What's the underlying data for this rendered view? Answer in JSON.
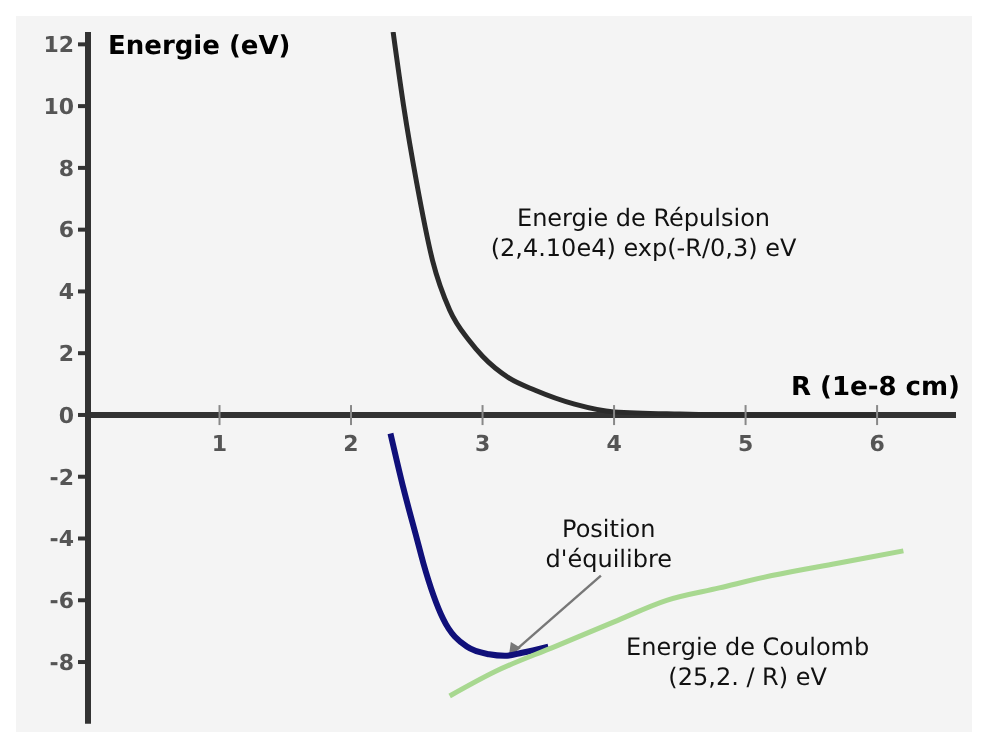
{
  "chart_data": {
    "type": "line",
    "ylabel": "Energie (eV)",
    "xlabel": "R (1e-8 cm)",
    "xlim": [
      0,
      6.6
    ],
    "xticks": [
      1,
      2,
      3,
      4,
      5,
      6
    ],
    "ylim": [
      -10,
      12.4
    ],
    "yticks": [
      -8,
      -6,
      -4,
      -2,
      0,
      2,
      4,
      6,
      8,
      10,
      12
    ],
    "marker": "none",
    "line_style": "solid",
    "series": [
      {
        "color": "#2b2b2b",
        "x": [
          2.32,
          2.4,
          2.5,
          2.62,
          2.75,
          2.9,
          3.0,
          3.2,
          3.4,
          3.7,
          4.0,
          4.5,
          5.0,
          5.5,
          6.0
        ],
        "values": [
          12.4,
          10,
          7.5,
          5,
          3.4,
          2.4,
          1.9,
          1.2,
          0.8,
          0.35,
          0.1,
          0.03,
          0,
          0,
          0
        ]
      },
      {
        "color": "#10107a",
        "x": [
          2.3,
          2.4,
          2.5,
          2.55,
          2.7,
          2.88,
          3.05,
          3.17,
          3.3,
          3.5
        ],
        "values": [
          -0.6,
          -2.4,
          -4.0,
          -4.8,
          -6.6,
          -7.5,
          -7.75,
          -7.8,
          -7.7,
          -7.5
        ]
      },
      {
        "color": "#a8d890",
        "x": [
          2.75,
          3.1,
          3.55,
          4.0,
          4.4,
          4.8,
          5.2,
          5.7,
          6.2
        ],
        "values": [
          -9.1,
          -8.3,
          -7.5,
          -6.7,
          -6.0,
          -5.6,
          -5.2,
          -4.8,
          -4.4
        ]
      }
    ],
    "annotations": [
      "Energie de Répulsion\n(2,4.10e4) exp(-R/0,3)   eV",
      {
        "text": "Position\nd'équilibre",
        "x": 3.2,
        "y": -7.8
      },
      "Energie de Coulomb\n(25,2. / R)   eV"
    ]
  }
}
